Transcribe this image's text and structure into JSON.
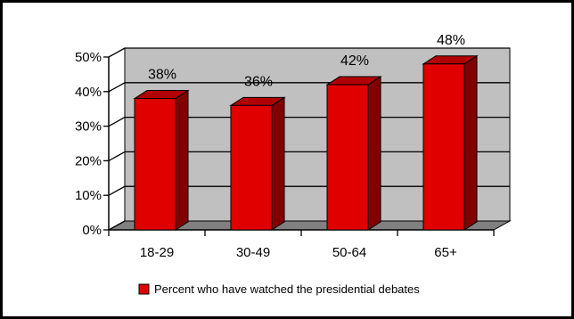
{
  "chart_data": {
    "type": "bar",
    "style": "3d-column",
    "title": "",
    "xlabel": "",
    "ylabel": "",
    "categories": [
      "18-29",
      "30-49",
      "50-64",
      "65+"
    ],
    "series": [
      {
        "name": "Percent who have watched the presidential debates",
        "values": [
          38,
          36,
          42,
          48
        ],
        "data_labels": [
          "38%",
          "36%",
          "42%",
          "48%"
        ]
      }
    ],
    "ylim": [
      0,
      50
    ],
    "yticks": [
      "0%",
      "10%",
      "20%",
      "30%",
      "40%",
      "50%"
    ],
    "ytick_values": [
      0,
      10,
      20,
      30,
      40,
      50
    ],
    "grid": true,
    "legend_position": "bottom",
    "colors": {
      "bar_front": "#e00000",
      "bar_side": "#800000",
      "bar_top": "#b00000",
      "back_wall": "#c0c0c0",
      "floor": "#808080",
      "gridline": "#000000",
      "frame": "#000000"
    }
  }
}
